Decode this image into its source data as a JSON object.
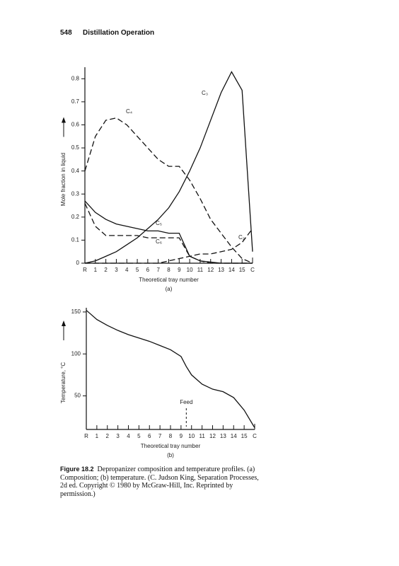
{
  "header": {
    "page_number": "548",
    "section": "Distillation Operation"
  },
  "chart_data": [
    {
      "type": "line",
      "y_label": "Mole fraction in liquid",
      "x_label": "Theoretical tray number",
      "panel": "(a)",
      "x": [
        0,
        1,
        2,
        3,
        4,
        5,
        6,
        7,
        8,
        9,
        10,
        11,
        12,
        13,
        14,
        15,
        16
      ],
      "xlim": [
        0,
        16
      ],
      "xticks": [
        {
          "value": 0,
          "label": "R"
        },
        1,
        2,
        3,
        4,
        5,
        6,
        7,
        8,
        9,
        10,
        11,
        12,
        13,
        14,
        15,
        {
          "value": 16,
          "label": "C"
        }
      ],
      "ylim": [
        0,
        0.85
      ],
      "yticks": [
        0,
        0.1,
        0.2,
        0.3,
        0.4,
        0.5,
        0.6,
        0.7,
        0.8
      ],
      "series": [
        {
          "name": "C₃",
          "color": "#111",
          "dashed": false,
          "values": [
            0,
            0.01,
            0.03,
            0.05,
            0.08,
            0.11,
            0.15,
            0.19,
            0.24,
            0.31,
            0.4,
            0.5,
            0.62,
            0.74,
            0.83,
            0.75,
            0.05
          ]
        },
        {
          "name": "C₄",
          "color": "#111",
          "dashed": true,
          "values": [
            0.4,
            0.55,
            0.62,
            0.63,
            0.6,
            0.55,
            0.5,
            0.45,
            0.42,
            0.42,
            0.36,
            0.28,
            0.19,
            0.13,
            0.07,
            0.02,
            0
          ]
        },
        {
          "name": "C₅",
          "color": "#111",
          "dashed": false,
          "values": [
            0.27,
            0.22,
            0.19,
            0.17,
            0.16,
            0.15,
            0.14,
            0.14,
            0.13,
            0.13,
            0.03,
            0.01,
            0.005,
            0,
            0,
            0,
            0
          ]
        },
        {
          "name": "C₆",
          "color": "#111",
          "dashed": true,
          "values": [
            0.26,
            0.16,
            0.12,
            0.12,
            0.12,
            0.12,
            0.11,
            0.11,
            0.11,
            0.11,
            0.03,
            0.01,
            0,
            0,
            0,
            0,
            0
          ]
        },
        {
          "name": "C₂",
          "color": "#111",
          "dashed": true,
          "values": [
            0,
            0,
            0,
            0,
            0,
            0,
            0,
            0,
            0.01,
            0.02,
            0.03,
            0.04,
            0.04,
            0.05,
            0.06,
            0.09,
            0.15
          ]
        }
      ]
    },
    {
      "type": "line",
      "y_label": "Temperature, °C",
      "x_label": "Theoretical tray number",
      "panel": "(b)",
      "x": [
        0,
        1,
        2,
        3,
        4,
        5,
        6,
        7,
        8,
        9,
        9.5,
        10,
        11,
        12,
        13,
        14,
        15,
        16
      ],
      "xlim": [
        0,
        16
      ],
      "xticks": [
        {
          "value": 0,
          "label": "R"
        },
        1,
        2,
        3,
        4,
        5,
        6,
        7,
        8,
        9,
        10,
        11,
        12,
        13,
        14,
        15,
        {
          "value": 16,
          "label": "C"
        }
      ],
      "ylim": [
        10,
        155
      ],
      "yticks": [
        50,
        100,
        150
      ],
      "series": [
        {
          "name": "Temperature",
          "color": "#111",
          "dashed": false,
          "values": [
            152,
            141,
            134,
            128,
            123,
            119,
            115,
            110,
            105,
            97,
            85,
            75,
            64,
            58,
            55,
            48,
            33,
            12
          ]
        }
      ],
      "annotations": [
        {
          "text": "Feed",
          "x": 9.5
        }
      ]
    }
  ],
  "caption": {
    "label": "Figure 18.2",
    "text": "Depropanizer composition and temperature profiles. (a) Composition; (b) temperature. (C. Judson King, Separation Processes, 2d ed. Copyright © 1980 by McGraw-Hill, Inc. Reprinted by permission.)"
  }
}
